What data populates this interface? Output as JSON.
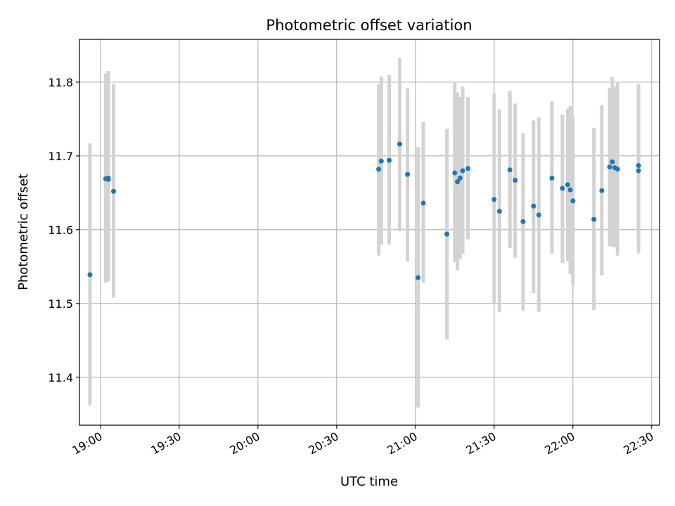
{
  "chart_data": {
    "type": "scatter",
    "title": "Photometric offset variation",
    "xlabel": "UTC time",
    "ylabel": "Photometric offset",
    "x_ticks": [
      "19:00",
      "19:30",
      "20:00",
      "20:30",
      "21:00",
      "21:30",
      "22:00",
      "22:30"
    ],
    "y_ticks": [
      11.4,
      11.5,
      11.6,
      11.7,
      11.8
    ],
    "xlim": [
      "18:52",
      "22:33"
    ],
    "ylim": [
      11.335,
      11.858
    ],
    "grid": true,
    "colors": {
      "point": "#1f77b4",
      "errorbar": "#d3d3d3",
      "grid": "#b0b0b0"
    },
    "series": [
      {
        "points": [
          {
            "x": "18:56",
            "y": 11.539,
            "ylow": 11.362,
            "yhigh": 11.717
          },
          {
            "x": "19:02",
            "y": 11.669,
            "ylow": 11.528,
            "yhigh": 11.812
          },
          {
            "x": "19:03",
            "y": 11.67,
            "ylow": 11.53,
            "yhigh": 11.815
          },
          {
            "x": "19:03",
            "y": 11.668,
            "ylow": 11.533,
            "yhigh": 11.805
          },
          {
            "x": "19:05",
            "y": 11.652,
            "ylow": 11.508,
            "yhigh": 11.797
          },
          {
            "x": "20:46",
            "y": 11.682,
            "ylow": 11.565,
            "yhigh": 11.797
          },
          {
            "x": "20:47",
            "y": 11.693,
            "ylow": 11.58,
            "yhigh": 11.808
          },
          {
            "x": "20:50",
            "y": 11.694,
            "ylow": 11.58,
            "yhigh": 11.81
          },
          {
            "x": "20:54",
            "y": 11.716,
            "ylow": 11.598,
            "yhigh": 11.833
          },
          {
            "x": "20:57",
            "y": 11.675,
            "ylow": 11.557,
            "yhigh": 11.792
          },
          {
            "x": "21:01",
            "y": 11.535,
            "ylow": 11.359,
            "yhigh": 11.712
          },
          {
            "x": "21:03",
            "y": 11.636,
            "ylow": 11.528,
            "yhigh": 11.746
          },
          {
            "x": "21:12",
            "y": 11.594,
            "ylow": 11.451,
            "yhigh": 11.737
          },
          {
            "x": "21:15",
            "y": 11.677,
            "ylow": 11.556,
            "yhigh": 11.799
          },
          {
            "x": "21:16",
            "y": 11.665,
            "ylow": 11.545,
            "yhigh": 11.786
          },
          {
            "x": "21:17",
            "y": 11.67,
            "ylow": 11.56,
            "yhigh": 11.78
          },
          {
            "x": "21:18",
            "y": 11.68,
            "ylow": 11.567,
            "yhigh": 11.794
          },
          {
            "x": "21:20",
            "y": 11.683,
            "ylow": 11.587,
            "yhigh": 11.78
          },
          {
            "x": "21:30",
            "y": 11.641,
            "ylow": 11.5,
            "yhigh": 11.784
          },
          {
            "x": "21:32",
            "y": 11.625,
            "ylow": 11.488,
            "yhigh": 11.763
          },
          {
            "x": "21:36",
            "y": 11.681,
            "ylow": 11.575,
            "yhigh": 11.788
          },
          {
            "x": "21:38",
            "y": 11.667,
            "ylow": 11.562,
            "yhigh": 11.771
          },
          {
            "x": "21:41",
            "y": 11.611,
            "ylow": 11.49,
            "yhigh": 11.731
          },
          {
            "x": "21:45",
            "y": 11.632,
            "ylow": 11.514,
            "yhigh": 11.748
          },
          {
            "x": "21:47",
            "y": 11.62,
            "ylow": 11.489,
            "yhigh": 11.752
          },
          {
            "x": "21:52",
            "y": 11.67,
            "ylow": 11.567,
            "yhigh": 11.774
          },
          {
            "x": "21:56",
            "y": 11.656,
            "ylow": 11.555,
            "yhigh": 11.756
          },
          {
            "x": "21:58",
            "y": 11.661,
            "ylow": 11.557,
            "yhigh": 11.764
          },
          {
            "x": "21:59",
            "y": 11.654,
            "ylow": 11.54,
            "yhigh": 11.768
          },
          {
            "x": "22:00",
            "y": 11.639,
            "ylow": 11.525,
            "yhigh": 11.753
          },
          {
            "x": "22:08",
            "y": 11.614,
            "ylow": 11.491,
            "yhigh": 11.738
          },
          {
            "x": "22:11",
            "y": 11.653,
            "ylow": 11.538,
            "yhigh": 11.769
          },
          {
            "x": "22:14",
            "y": 11.685,
            "ylow": 11.578,
            "yhigh": 11.792
          },
          {
            "x": "22:15",
            "y": 11.692,
            "ylow": 11.577,
            "yhigh": 11.807
          },
          {
            "x": "22:16",
            "y": 11.684,
            "ylow": 11.576,
            "yhigh": 11.794
          },
          {
            "x": "22:17",
            "y": 11.682,
            "ylow": 11.565,
            "yhigh": 11.799
          },
          {
            "x": "22:25",
            "y": 11.687,
            "ylow": 11.578,
            "yhigh": 11.797
          },
          {
            "x": "22:25",
            "y": 11.68,
            "ylow": 11.568,
            "yhigh": 11.792
          }
        ]
      }
    ]
  }
}
